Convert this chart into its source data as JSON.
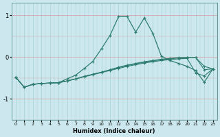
{
  "xlabel": "Humidex (Indice chaleur)",
  "bg_color": "#cce8ee",
  "line_color": "#2e7d70",
  "grid_v_color": "#aad4da",
  "grid_h_color": "#d4a8a8",
  "x": [
    0,
    1,
    2,
    3,
    4,
    5,
    6,
    7,
    8,
    9,
    10,
    11,
    12,
    13,
    14,
    15,
    16,
    17,
    18,
    19,
    20,
    21,
    22,
    23
  ],
  "line1": [
    -0.48,
    -0.72,
    -0.65,
    -0.63,
    -0.62,
    -0.61,
    -0.52,
    -0.43,
    -0.27,
    -0.1,
    0.2,
    0.52,
    0.97,
    0.97,
    0.6,
    0.94,
    0.57,
    0.02,
    -0.08,
    -0.15,
    -0.22,
    -0.32,
    -0.6,
    -0.28
  ],
  "line2": [
    -0.48,
    -0.72,
    -0.65,
    -0.63,
    -0.62,
    -0.61,
    -0.57,
    -0.52,
    -0.47,
    -0.42,
    -0.37,
    -0.32,
    -0.27,
    -0.22,
    -0.18,
    -0.14,
    -0.11,
    -0.08,
    -0.06,
    -0.04,
    -0.03,
    -0.38,
    -0.45,
    -0.28
  ],
  "line3": [
    -0.48,
    -0.72,
    -0.65,
    -0.63,
    -0.62,
    -0.61,
    -0.57,
    -0.52,
    -0.46,
    -0.41,
    -0.36,
    -0.31,
    -0.25,
    -0.2,
    -0.16,
    -0.12,
    -0.09,
    -0.06,
    -0.04,
    -0.02,
    -0.01,
    -0.01,
    -0.3,
    -0.28
  ],
  "line4": [
    -0.48,
    -0.72,
    -0.65,
    -0.63,
    -0.62,
    -0.61,
    -0.57,
    -0.52,
    -0.46,
    -0.41,
    -0.36,
    -0.3,
    -0.24,
    -0.19,
    -0.15,
    -0.11,
    -0.08,
    -0.05,
    -0.03,
    -0.01,
    -0.01,
    -0.01,
    -0.22,
    -0.28
  ],
  "ylim": [
    -1.5,
    1.3
  ],
  "yticks": [
    -1,
    0,
    1
  ],
  "xticks": [
    0,
    1,
    2,
    3,
    4,
    5,
    6,
    7,
    8,
    9,
    10,
    11,
    12,
    13,
    14,
    15,
    16,
    17,
    18,
    19,
    20,
    21,
    22,
    23
  ]
}
